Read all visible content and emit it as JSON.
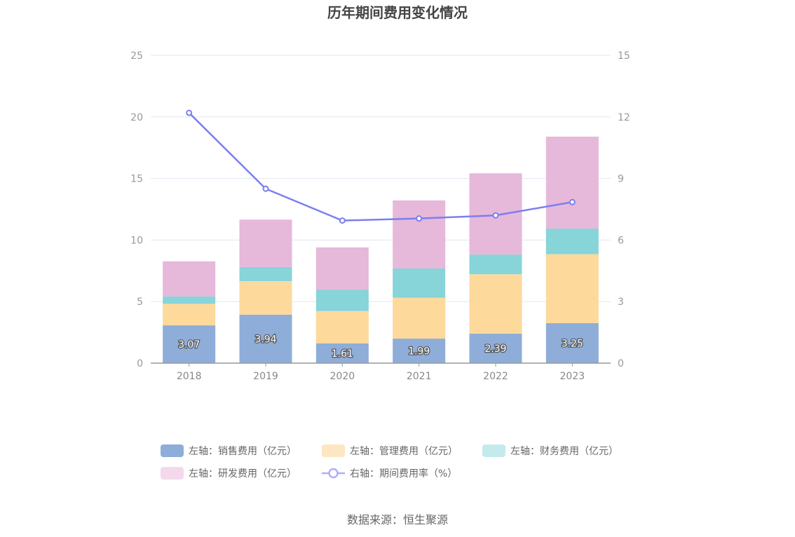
{
  "chart_data": {
    "type": "bar",
    "title": "历年期间费用变化情况",
    "categories": [
      "2018",
      "2019",
      "2020",
      "2021",
      "2022",
      "2023"
    ],
    "stacked": true,
    "series": [
      {
        "name": "左轴：销售费用（亿元）",
        "axis": "left",
        "type": "bar",
        "color": "#8eadd9",
        "values": [
          3.07,
          3.94,
          1.61,
          1.99,
          2.39,
          3.25
        ],
        "data_labels": [
          "3.07",
          "3.94",
          "1.61",
          "1.99",
          "2.39",
          "3.25"
        ]
      },
      {
        "name": "左轴：管理费用（亿元）",
        "axis": "left",
        "type": "bar",
        "color": "#fdd99c",
        "values": [
          1.75,
          2.72,
          2.62,
          3.32,
          4.83,
          5.6
        ]
      },
      {
        "name": "左轴：财务费用（亿元）",
        "axis": "left",
        "type": "bar",
        "color": "#87d4d9",
        "values": [
          0.6,
          1.15,
          1.72,
          2.38,
          1.6,
          2.08
        ]
      },
      {
        "name": "左轴：研发费用（亿元）",
        "axis": "left",
        "type": "bar",
        "color": "#e6b8da",
        "values": [
          2.85,
          3.85,
          3.45,
          5.53,
          6.6,
          7.47
        ]
      },
      {
        "name": "右轴：期间费用率（%）",
        "axis": "right",
        "type": "line",
        "color": "#7b7ff0",
        "values": [
          12.2,
          8.5,
          6.95,
          7.05,
          7.2,
          7.85
        ]
      }
    ],
    "y_left": {
      "ylim": [
        0,
        25
      ],
      "ticks": [
        "0",
        "5",
        "10",
        "15",
        "20",
        "25"
      ]
    },
    "y_right": {
      "ylim": [
        0,
        15
      ],
      "ticks": [
        "0",
        "3",
        "6",
        "9",
        "12",
        "15"
      ]
    },
    "grid": true,
    "legend_position": "bottom"
  },
  "source": "数据来源：恒生聚源"
}
